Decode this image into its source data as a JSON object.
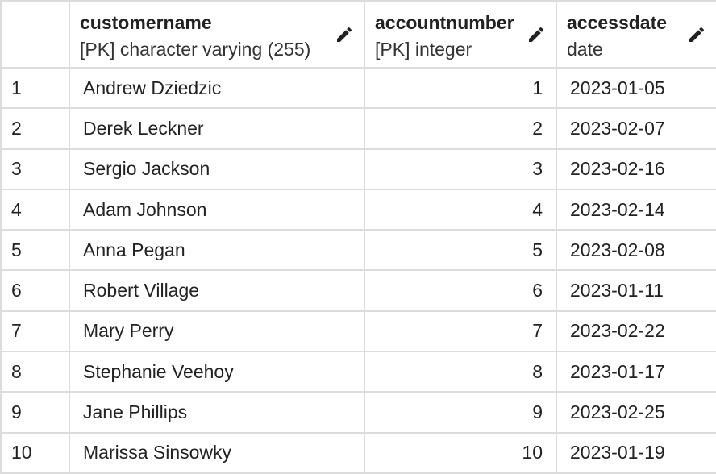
{
  "columns": [
    {
      "name": "customername",
      "type": "[PK] character varying (255)",
      "edit_icon": "pencil-icon"
    },
    {
      "name": "accountnumber",
      "type": "[PK] integer",
      "edit_icon": "pencil-icon"
    },
    {
      "name": "accessdate",
      "type": "date",
      "edit_icon": "pencil-icon"
    }
  ],
  "rows": [
    {
      "index": "1",
      "customername": "Andrew Dziedzic",
      "accountnumber": "1",
      "accessdate": "2023-01-05"
    },
    {
      "index": "2",
      "customername": "Derek Leckner",
      "accountnumber": "2",
      "accessdate": "2023-02-07"
    },
    {
      "index": "3",
      "customername": "Sergio Jackson",
      "accountnumber": "3",
      "accessdate": "2023-02-16"
    },
    {
      "index": "4",
      "customername": "Adam Johnson",
      "accountnumber": "4",
      "accessdate": "2023-02-14"
    },
    {
      "index": "5",
      "customername": "Anna Pegan",
      "accountnumber": "5",
      "accessdate": "2023-02-08"
    },
    {
      "index": "6",
      "customername": "Robert Village",
      "accountnumber": "6",
      "accessdate": "2023-01-11"
    },
    {
      "index": "7",
      "customername": "Mary Perry",
      "accountnumber": "7",
      "accessdate": "2023-02-22"
    },
    {
      "index": "8",
      "customername": "Stephanie Veehoy",
      "accountnumber": "8",
      "accessdate": "2023-01-17"
    },
    {
      "index": "9",
      "customername": "Jane Phillips",
      "accountnumber": "9",
      "accessdate": "2023-02-25"
    },
    {
      "index": "10",
      "customername": "Marissa Sinsowky",
      "accountnumber": "10",
      "accessdate": "2023-01-19"
    }
  ],
  "colors": {
    "grid_line": "#dcdcdc",
    "text": "#222222",
    "background": "#ffffff"
  }
}
